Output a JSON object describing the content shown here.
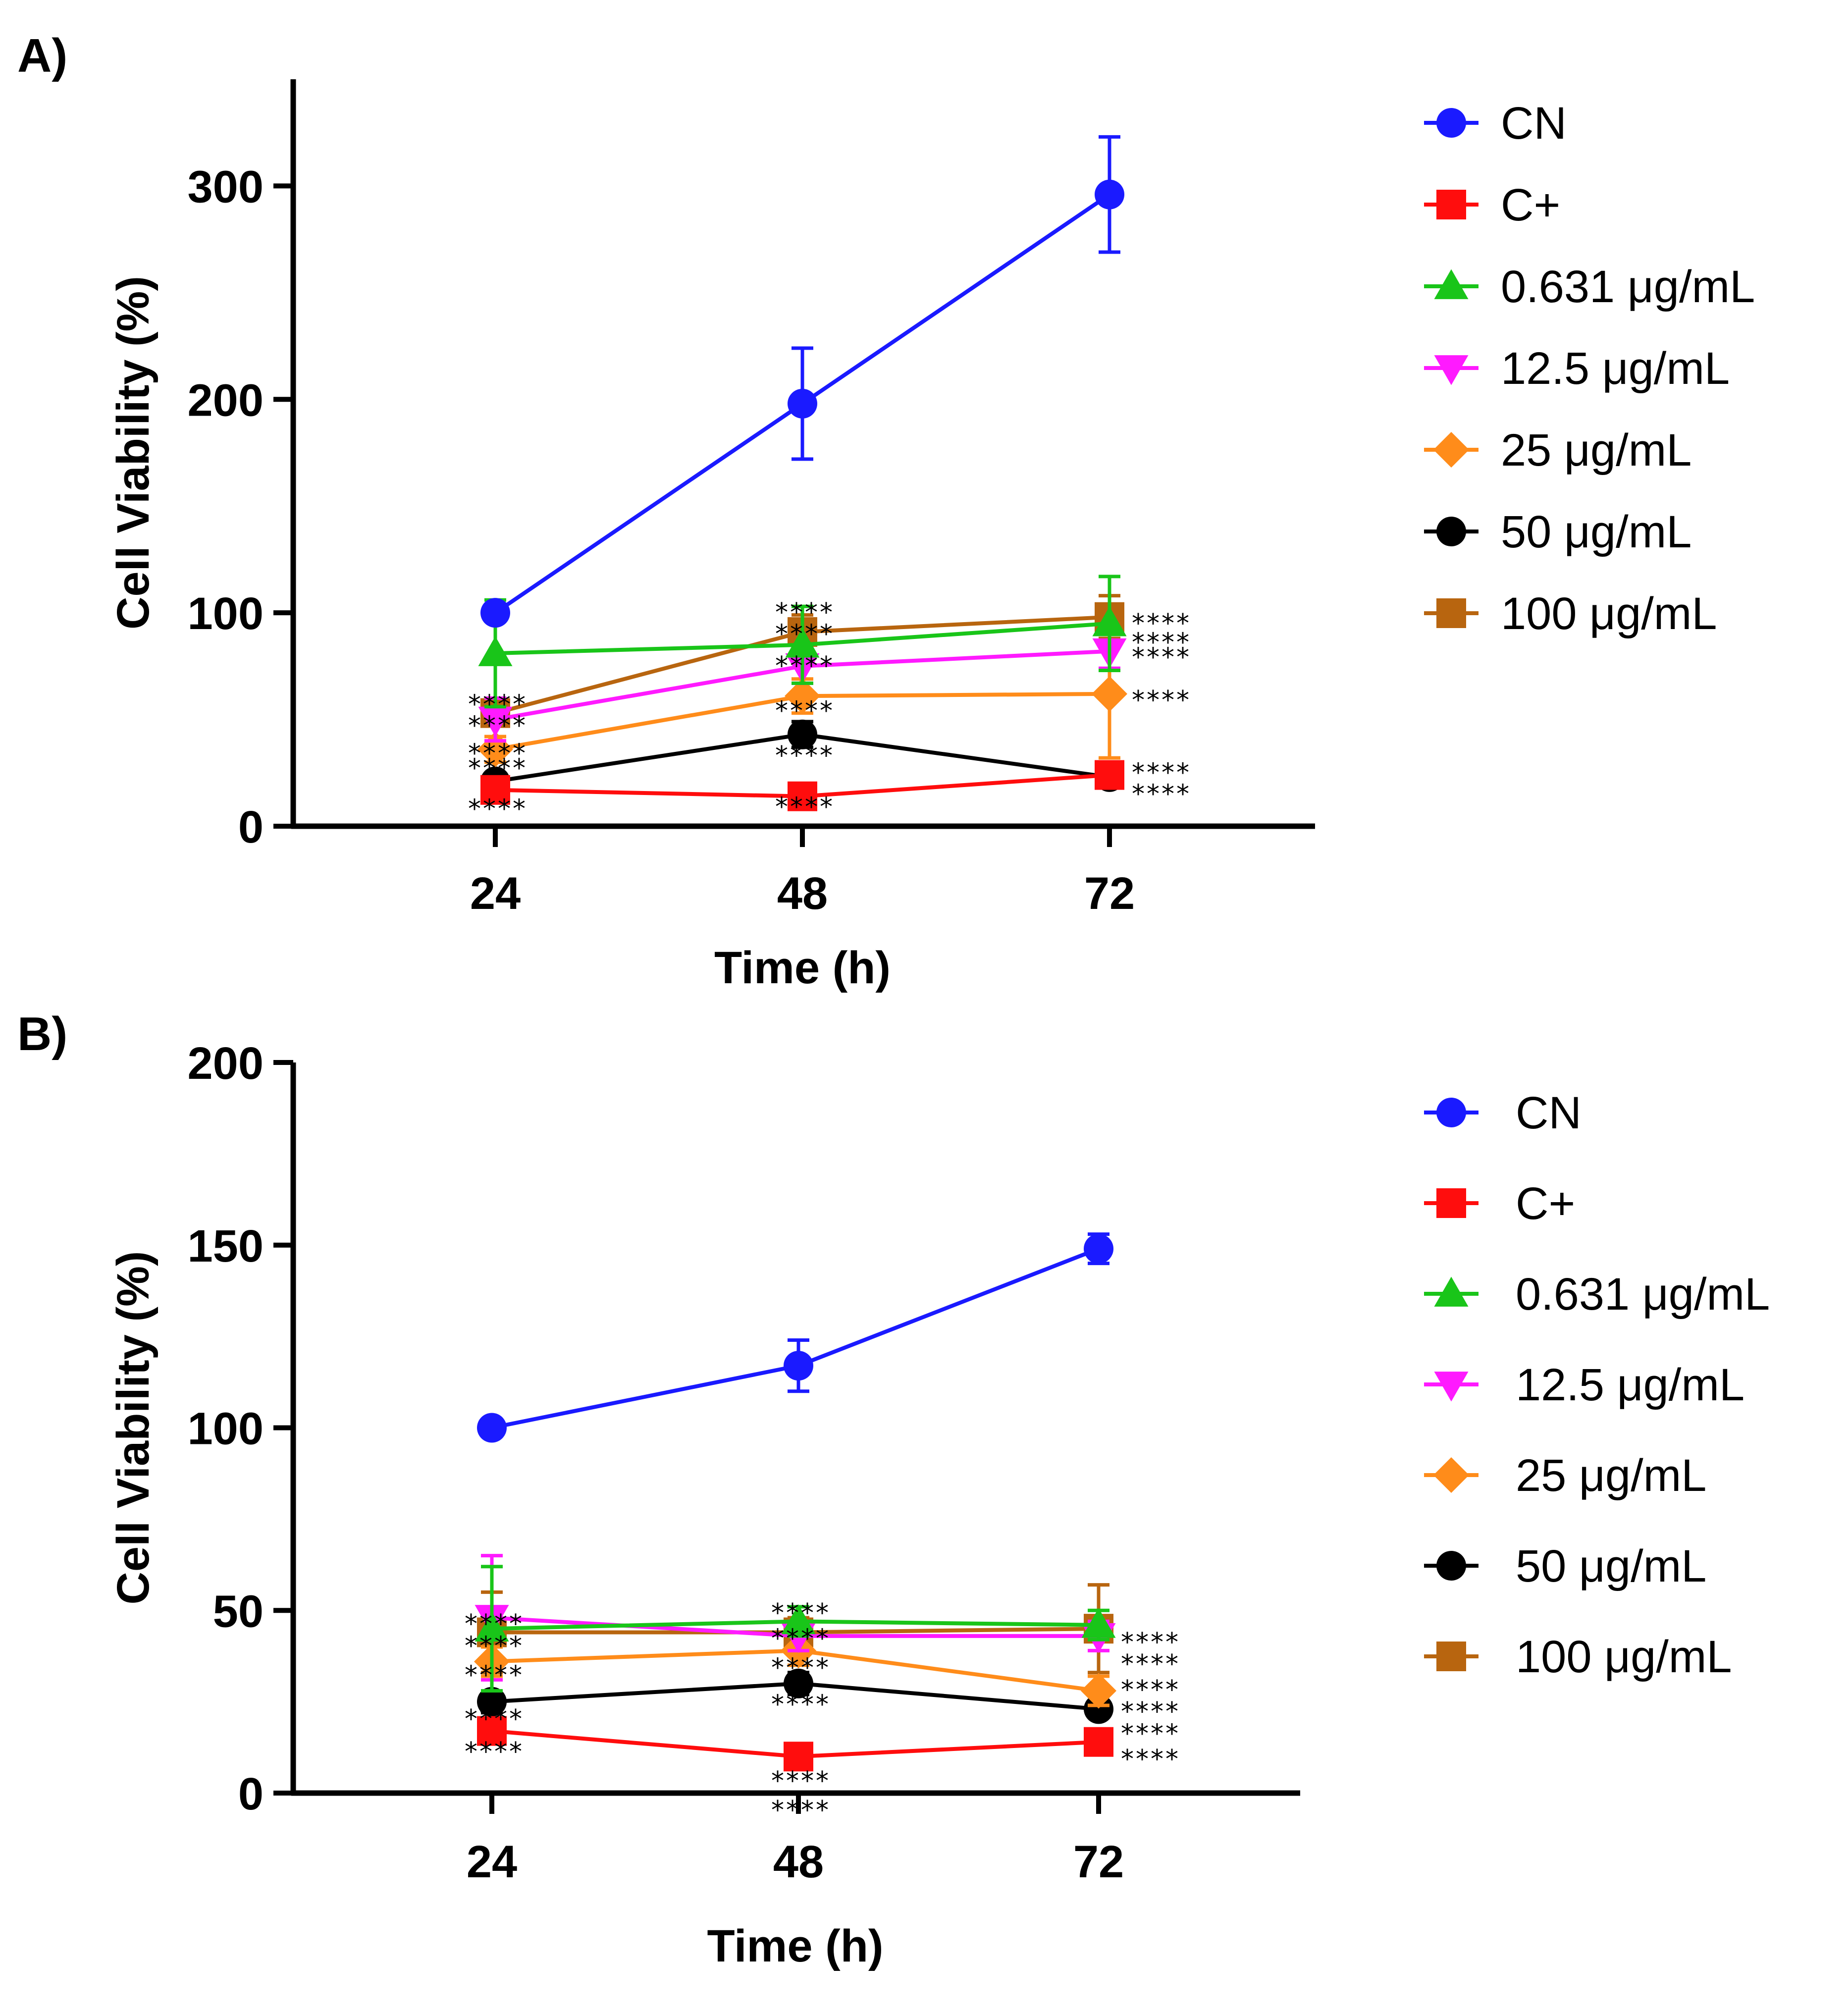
{
  "chart_data": [
    {
      "type": "line",
      "panel_label": "A)",
      "title": "",
      "xlabel": "Time (h)",
      "ylabel": "Cell Viability (%)",
      "categories": [
        "24",
        "48",
        "72"
      ],
      "ylim": [
        0,
        350
      ],
      "yticks": [
        0,
        100,
        200,
        300
      ],
      "grid": false,
      "legend": "right",
      "series": [
        {
          "name": "CN",
          "color": "#1a1aff",
          "marker": "circle",
          "values": [
            100,
            198,
            296
          ],
          "errors": [
            4,
            26,
            27
          ]
        },
        {
          "name": "C+",
          "color": "#ff0d0d",
          "marker": "square",
          "values": [
            17,
            14,
            24
          ],
          "errors": [
            2,
            2,
            3
          ]
        },
        {
          "name": "0.631 μg/mL",
          "color": "#19c519",
          "marker": "triangle-up",
          "values": [
            81,
            85,
            95
          ],
          "errors": [
            25,
            18,
            22
          ]
        },
        {
          "name": "12.5 μg/mL",
          "color": "#ff1aff",
          "marker": "triangle-down",
          "values": [
            50,
            75,
            82
          ],
          "errors": [
            10,
            8,
            8
          ]
        },
        {
          "name": "25 μg/mL",
          "color": "#ff8c1a",
          "marker": "diamond",
          "values": [
            36,
            61,
            62
          ],
          "errors": [
            6,
            8,
            30
          ]
        },
        {
          "name": "50 μg/mL",
          "color": "#000000",
          "marker": "circle",
          "values": [
            21,
            43,
            23
          ],
          "errors": [
            3,
            6,
            3
          ]
        },
        {
          "name": "100 μg/mL",
          "color": "#b8650f",
          "marker": "square",
          "values": [
            53,
            91,
            98
          ],
          "errors": [
            6,
            8,
            10
          ]
        }
      ],
      "annotations": [
        {
          "text": "****",
          "x": "24",
          "y": 60
        },
        {
          "text": "****",
          "x": "24",
          "y": 50
        },
        {
          "text": "****",
          "x": "24",
          "y": 37
        },
        {
          "text": "****",
          "x": "24",
          "y": 30
        },
        {
          "text": "****",
          "x": "24",
          "y": 11
        },
        {
          "text": "****",
          "x": "48",
          "y": 103
        },
        {
          "text": "****",
          "x": "48",
          "y": 93
        },
        {
          "text": "****",
          "x": "48",
          "y": 78
        },
        {
          "text": "****",
          "x": "48",
          "y": 57
        },
        {
          "text": "****",
          "x": "48",
          "y": 36
        },
        {
          "text": "****",
          "x": "48",
          "y": 12
        },
        {
          "text": "****",
          "x": "72",
          "y": 98
        },
        {
          "text": "****",
          "x": "72",
          "y": 89
        },
        {
          "text": "****",
          "x": "72",
          "y": 82
        },
        {
          "text": "****",
          "x": "72",
          "y": 62
        },
        {
          "text": "****",
          "x": "72",
          "y": 28
        },
        {
          "text": "****",
          "x": "72",
          "y": 18
        }
      ]
    },
    {
      "type": "line",
      "panel_label": "B)",
      "title": "",
      "xlabel": "Time (h)",
      "ylabel": "Cell Viability (%)",
      "categories": [
        "24",
        "48",
        "72"
      ],
      "ylim": [
        0,
        200
      ],
      "yticks": [
        0,
        50,
        100,
        150,
        200
      ],
      "grid": false,
      "legend": "right",
      "series": [
        {
          "name": "CN",
          "color": "#1a1aff",
          "marker": "circle",
          "values": [
            100,
            117,
            149
          ],
          "errors": [
            1,
            7,
            4
          ]
        },
        {
          "name": "C+",
          "color": "#ff0d0d",
          "marker": "square",
          "values": [
            17,
            10,
            14
          ],
          "errors": [
            2,
            2,
            2
          ]
        },
        {
          "name": "0.631 μg/mL",
          "color": "#19c519",
          "marker": "triangle-up",
          "values": [
            45,
            47,
            46
          ],
          "errors": [
            17,
            4,
            4
          ]
        },
        {
          "name": "12.5 μg/mL",
          "color": "#ff1aff",
          "marker": "triangle-down",
          "values": [
            48,
            43,
            43
          ],
          "errors": [
            17,
            4,
            4
          ]
        },
        {
          "name": "25 μg/mL",
          "color": "#ff8c1a",
          "marker": "diamond",
          "values": [
            36,
            39,
            28
          ],
          "errors": [
            4,
            4,
            4
          ]
        },
        {
          "name": "50 μg/mL",
          "color": "#000000",
          "marker": "circle",
          "values": [
            25,
            30,
            23
          ],
          "errors": [
            3,
            3,
            2
          ]
        },
        {
          "name": "100 μg/mL",
          "color": "#b8650f",
          "marker": "square",
          "values": [
            44,
            44,
            45
          ],
          "errors": [
            11,
            4,
            12
          ]
        }
      ],
      "annotations": [
        {
          "text": "****",
          "x": "24",
          "y": 48
        },
        {
          "text": "****",
          "x": "24",
          "y": 42
        },
        {
          "text": "****",
          "x": "24",
          "y": 34
        },
        {
          "text": "****",
          "x": "24",
          "y": 22
        },
        {
          "text": "****",
          "x": "24",
          "y": 13
        },
        {
          "text": "****",
          "x": "48",
          "y": 51
        },
        {
          "text": "****",
          "x": "48",
          "y": 44
        },
        {
          "text": "****",
          "x": "48",
          "y": 36
        },
        {
          "text": "****",
          "x": "48",
          "y": 26
        },
        {
          "text": "****",
          "x": "48",
          "y": 5
        },
        {
          "text": "****",
          "x": "48",
          "y": -3
        },
        {
          "text": "****",
          "x": "72",
          "y": 43
        },
        {
          "text": "****",
          "x": "72",
          "y": 37
        },
        {
          "text": "****",
          "x": "72",
          "y": 30
        },
        {
          "text": "****",
          "x": "72",
          "y": 24
        },
        {
          "text": "****",
          "x": "72",
          "y": 18
        },
        {
          "text": "****",
          "x": "72",
          "y": 11
        }
      ]
    }
  ]
}
